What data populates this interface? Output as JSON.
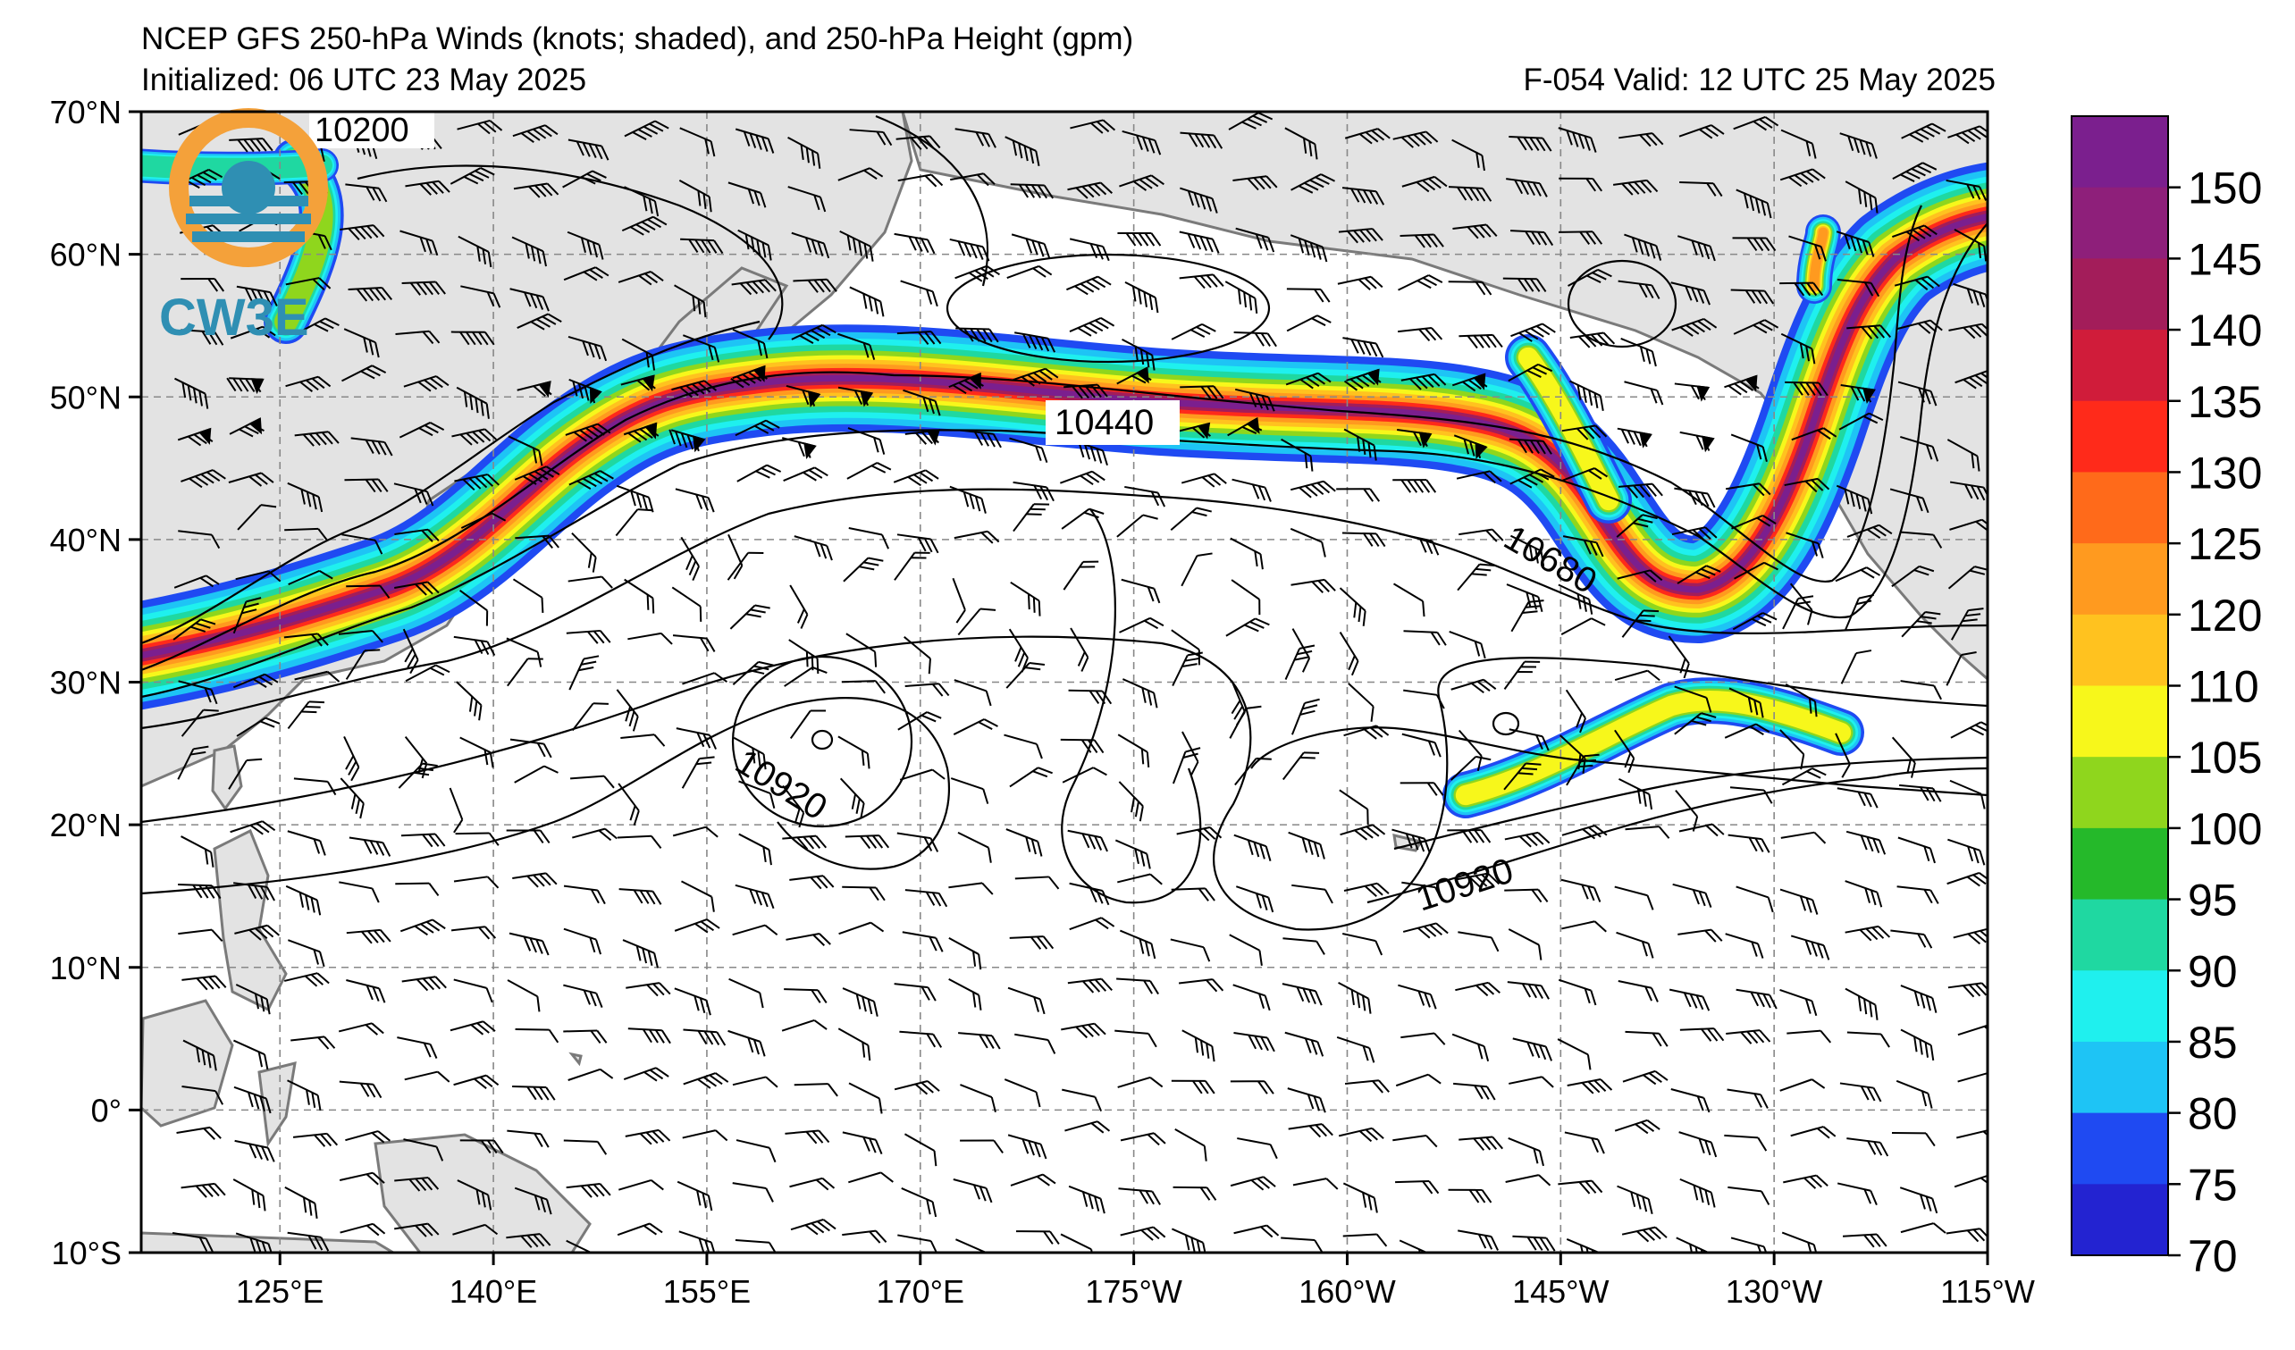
{
  "header": {
    "title": "NCEP GFS 250-hPa Winds (knots; shaded), and 250-hPa Height (gpm)",
    "initialized": "Initialized: 06 UTC 23 May 2025",
    "valid": "F-054  Valid: 12 UTC 25 May 2025"
  },
  "logo": {
    "text": "CW3E",
    "ring_color": "#f4a13a",
    "accent_color": "#2f8fb3"
  },
  "map": {
    "lat_labels": [
      "70°N",
      "60°N",
      "50°N",
      "40°N",
      "30°N",
      "20°N",
      "10°N",
      "0°",
      "10°S"
    ],
    "lon_labels": [
      "125°E",
      "140°E",
      "155°E",
      "170°E",
      "175°W",
      "160°W",
      "145°W",
      "130°W",
      "115°W"
    ],
    "contour_labels": [
      "10200",
      "10440",
      "10680",
      "10920",
      "10920"
    ],
    "land_color": "#e3e3e3",
    "coast_color": "#7a7a7a"
  },
  "colorbar": {
    "units": "knots",
    "ticks": [
      "150",
      "145",
      "140",
      "135",
      "130",
      "125",
      "120",
      "110",
      "105",
      "100",
      "95",
      "90",
      "85",
      "80",
      "75",
      "70"
    ],
    "colors": [
      "#7b1f8e",
      "#8e1f7a",
      "#a31d5a",
      "#d01c3a",
      "#ff2a1a",
      "#ff6a1a",
      "#ff9a1f",
      "#ffc21f",
      "#f7f71b",
      "#8fd61d",
      "#25b92a",
      "#1fd8a1",
      "#1ff0ee",
      "#1ec4f5",
      "#1f4af2",
      "#2323d1"
    ]
  }
}
